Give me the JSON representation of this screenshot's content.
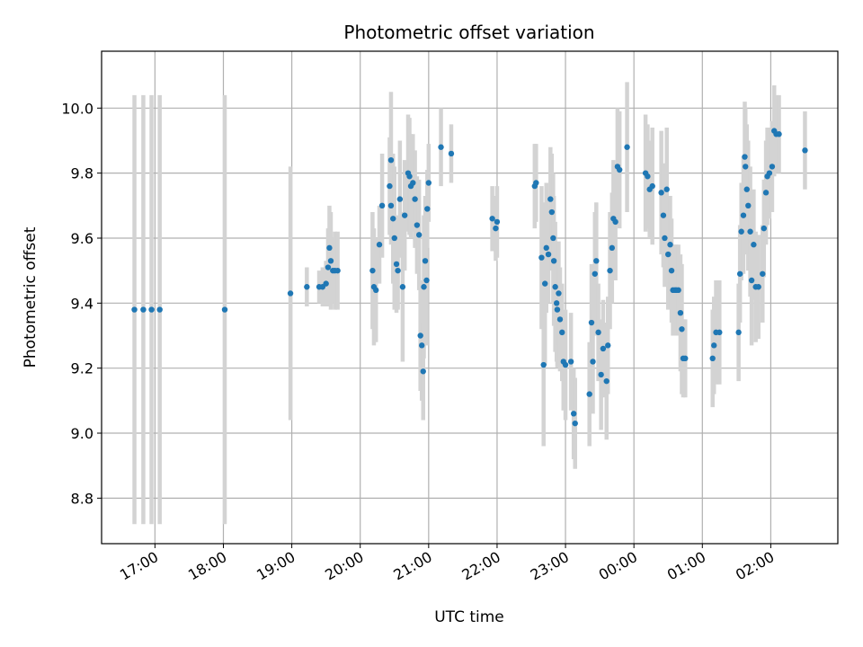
{
  "chart_data": {
    "type": "scatter",
    "title": "Photometric offset variation",
    "xlabel": "UTC time",
    "ylabel": "Photometric offset",
    "x_unit": "UTC hours (times after midnight written as 24+)",
    "xlim": [
      16.22,
      26.98
    ],
    "ylim": [
      8.66,
      10.175
    ],
    "xticks": [
      {
        "value": 17,
        "label": "17:00"
      },
      {
        "value": 18,
        "label": "18:00"
      },
      {
        "value": 19,
        "label": "19:00"
      },
      {
        "value": 20,
        "label": "20:00"
      },
      {
        "value": 21,
        "label": "21:00"
      },
      {
        "value": 22,
        "label": "22:00"
      },
      {
        "value": 23,
        "label": "23:00"
      },
      {
        "value": 24,
        "label": "00:00"
      },
      {
        "value": 25,
        "label": "01:00"
      },
      {
        "value": 26,
        "label": "02:00"
      }
    ],
    "yticks": [
      {
        "value": 8.8,
        "label": "8.8"
      },
      {
        "value": 9.0,
        "label": "9.0"
      },
      {
        "value": 9.2,
        "label": "9.2"
      },
      {
        "value": 9.4,
        "label": "9.4"
      },
      {
        "value": 9.6,
        "label": "9.6"
      },
      {
        "value": 9.8,
        "label": "9.8"
      },
      {
        "value": 10.0,
        "label": "10.0"
      }
    ],
    "grid": true,
    "colors": {
      "point": "#1f77b4",
      "errorbar": "#d3d3d3",
      "grid": "#b0b0b0"
    },
    "points": [
      [
        16.7,
        9.38,
        0.66
      ],
      [
        16.83,
        9.38,
        0.66
      ],
      [
        16.95,
        9.38,
        0.66
      ],
      [
        17.07,
        9.38,
        0.66
      ],
      [
        18.02,
        9.38,
        0.66
      ],
      [
        18.98,
        9.43,
        0.39
      ],
      [
        19.22,
        9.45,
        0.06
      ],
      [
        19.4,
        9.45,
        0.05
      ],
      [
        19.45,
        9.45,
        0.06
      ],
      [
        19.5,
        9.46,
        0.07
      ],
      [
        19.53,
        9.51,
        0.12
      ],
      [
        19.55,
        9.57,
        0.13
      ],
      [
        19.57,
        9.53,
        0.15
      ],
      [
        19.6,
        9.5,
        0.1
      ],
      [
        19.63,
        9.5,
        0.12
      ],
      [
        19.67,
        9.5,
        0.12
      ],
      [
        20.18,
        9.5,
        0.18
      ],
      [
        20.2,
        9.45,
        0.18
      ],
      [
        20.23,
        9.44,
        0.16
      ],
      [
        20.28,
        9.58,
        0.12
      ],
      [
        20.32,
        9.7,
        0.16
      ],
      [
        20.45,
        9.7,
        0.12
      ],
      [
        20.43,
        9.76,
        0.15
      ],
      [
        20.45,
        9.84,
        0.21
      ],
      [
        20.48,
        9.66,
        0.2
      ],
      [
        20.5,
        9.6,
        0.22
      ],
      [
        20.53,
        9.52,
        0.15
      ],
      [
        20.55,
        9.5,
        0.12
      ],
      [
        20.58,
        9.72,
        0.18
      ],
      [
        20.62,
        9.45,
        0.23
      ],
      [
        20.65,
        9.67,
        0.17
      ],
      [
        20.7,
        9.8,
        0.18
      ],
      [
        20.72,
        9.79,
        0.18
      ],
      [
        20.74,
        9.76,
        0.16
      ],
      [
        20.77,
        9.77,
        0.15
      ],
      [
        20.8,
        9.72,
        0.15
      ],
      [
        20.83,
        9.64,
        0.15
      ],
      [
        20.86,
        9.61,
        0.17
      ],
      [
        20.88,
        9.3,
        0.17
      ],
      [
        20.9,
        9.27,
        0.17
      ],
      [
        20.92,
        9.19,
        0.15
      ],
      [
        20.93,
        9.45,
        0.22
      ],
      [
        20.95,
        9.53,
        0.2
      ],
      [
        20.97,
        9.47,
        0.2
      ],
      [
        20.98,
        9.69,
        0.12
      ],
      [
        21.0,
        9.77,
        0.12
      ],
      [
        21.18,
        9.88,
        0.12
      ],
      [
        21.33,
        9.86,
        0.09
      ],
      [
        21.93,
        9.66,
        0.1
      ],
      [
        21.98,
        9.63,
        0.1
      ],
      [
        22.0,
        9.65,
        0.11
      ],
      [
        22.55,
        9.76,
        0.13
      ],
      [
        22.57,
        9.77,
        0.12
      ],
      [
        22.65,
        9.54,
        0.22
      ],
      [
        22.68,
        9.21,
        0.25
      ],
      [
        22.7,
        9.46,
        0.25
      ],
      [
        22.72,
        9.57,
        0.2
      ],
      [
        22.75,
        9.55,
        0.15
      ],
      [
        22.78,
        9.72,
        0.16
      ],
      [
        22.8,
        9.68,
        0.18
      ],
      [
        22.82,
        9.6,
        0.2
      ],
      [
        22.83,
        9.53,
        0.2
      ],
      [
        22.85,
        9.45,
        0.2
      ],
      [
        22.87,
        9.4,
        0.18
      ],
      [
        22.88,
        9.38,
        0.18
      ],
      [
        22.9,
        9.43,
        0.16
      ],
      [
        22.92,
        9.35,
        0.16
      ],
      [
        22.95,
        9.31,
        0.15
      ],
      [
        22.97,
        9.22,
        0.15
      ],
      [
        23.0,
        9.21,
        0.17
      ],
      [
        23.08,
        9.22,
        0.15
      ],
      [
        23.12,
        9.06,
        0.14
      ],
      [
        23.14,
        9.03,
        0.14
      ],
      [
        23.35,
        9.12,
        0.16
      ],
      [
        23.38,
        9.34,
        0.18
      ],
      [
        23.4,
        9.22,
        0.16
      ],
      [
        23.43,
        9.49,
        0.19
      ],
      [
        23.45,
        9.53,
        0.18
      ],
      [
        23.48,
        9.31,
        0.15
      ],
      [
        23.52,
        9.18,
        0.17
      ],
      [
        23.55,
        9.26,
        0.15
      ],
      [
        23.6,
        9.16,
        0.18
      ],
      [
        23.62,
        9.27,
        0.15
      ],
      [
        23.65,
        9.5,
        0.18
      ],
      [
        23.68,
        9.57,
        0.17
      ],
      [
        23.7,
        9.66,
        0.18
      ],
      [
        23.73,
        9.65,
        0.18
      ],
      [
        23.76,
        9.82,
        0.18
      ],
      [
        23.79,
        9.81,
        0.18
      ],
      [
        23.9,
        9.88,
        0.2
      ],
      [
        24.17,
        9.8,
        0.18
      ],
      [
        24.2,
        9.79,
        0.16
      ],
      [
        24.23,
        9.75,
        0.15
      ],
      [
        24.27,
        9.76,
        0.18
      ],
      [
        24.4,
        9.74,
        0.19
      ],
      [
        24.43,
        9.67,
        0.16
      ],
      [
        24.45,
        9.6,
        0.15
      ],
      [
        24.48,
        9.75,
        0.19
      ],
      [
        24.5,
        9.55,
        0.17
      ],
      [
        24.53,
        9.58,
        0.15
      ],
      [
        24.55,
        9.5,
        0.16
      ],
      [
        24.57,
        9.44,
        0.14
      ],
      [
        24.6,
        9.44,
        0.14
      ],
      [
        24.62,
        9.44,
        0.14
      ],
      [
        24.65,
        9.44,
        0.14
      ],
      [
        24.68,
        9.37,
        0.18
      ],
      [
        24.7,
        9.32,
        0.2
      ],
      [
        24.72,
        9.23,
        0.12
      ],
      [
        24.75,
        9.23,
        0.12
      ],
      [
        25.15,
        9.23,
        0.15
      ],
      [
        25.17,
        9.27,
        0.15
      ],
      [
        25.2,
        9.31,
        0.16
      ],
      [
        25.25,
        9.31,
        0.16
      ],
      [
        25.53,
        9.31,
        0.15
      ],
      [
        25.55,
        9.49,
        0.15
      ],
      [
        25.57,
        9.62,
        0.15
      ],
      [
        25.6,
        9.67,
        0.18
      ],
      [
        25.62,
        9.85,
        0.17
      ],
      [
        25.63,
        9.82,
        0.18
      ],
      [
        25.65,
        9.75,
        0.2
      ],
      [
        25.67,
        9.7,
        0.2
      ],
      [
        25.7,
        9.62,
        0.2
      ],
      [
        25.72,
        9.47,
        0.2
      ],
      [
        25.75,
        9.58,
        0.17
      ],
      [
        25.78,
        9.45,
        0.17
      ],
      [
        25.82,
        9.45,
        0.16
      ],
      [
        25.88,
        9.49,
        0.15
      ],
      [
        25.9,
        9.63,
        0.15
      ],
      [
        25.93,
        9.74,
        0.16
      ],
      [
        25.95,
        9.79,
        0.15
      ],
      [
        25.98,
        9.8,
        0.14
      ],
      [
        26.02,
        9.82,
        0.14
      ],
      [
        26.05,
        9.93,
        0.14
      ],
      [
        26.08,
        9.92,
        0.12
      ],
      [
        26.12,
        9.92,
        0.12
      ],
      [
        26.5,
        9.87,
        0.12
      ]
    ]
  }
}
